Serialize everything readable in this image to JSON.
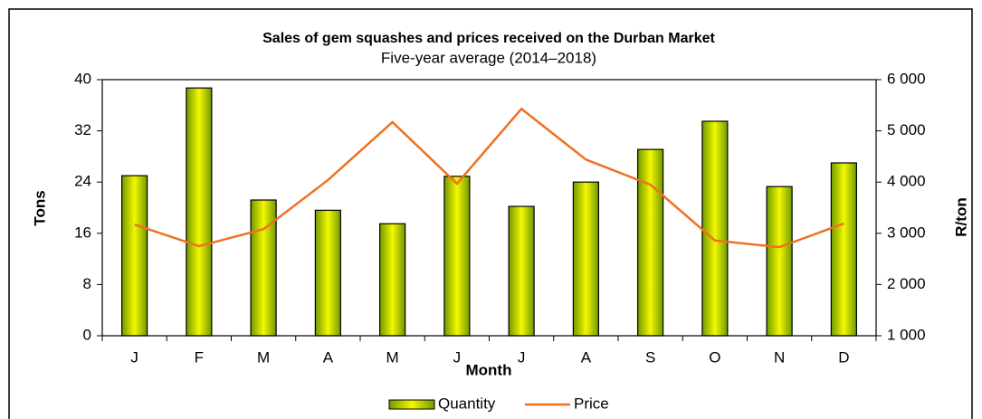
{
  "chart_data": {
    "type": "bar-line",
    "title": "Sales of gem squashes and prices received on the Durban Market",
    "subtitle": "Five-year average (2014–2018)",
    "x_label": "Month",
    "y_label": "Tons",
    "y2_label": "R/ton",
    "categories": [
      "J",
      "F",
      "M",
      "A",
      "M",
      "J",
      "J",
      "A",
      "S",
      "O",
      "N",
      "D"
    ],
    "series": [
      {
        "name": "Quantity",
        "type": "bar",
        "color": "#9acd00",
        "values": [
          25,
          38.7,
          21.2,
          19.6,
          17.5,
          24.9,
          20.2,
          24,
          29.1,
          33.5,
          23.3,
          27
        ]
      },
      {
        "name": "Price",
        "type": "line",
        "axis": "y2",
        "color": "#f07020",
        "values": [
          3170,
          2750,
          3080,
          4040,
          5170,
          3970,
          5430,
          4440,
          3950,
          2860,
          2730,
          3190
        ]
      }
    ],
    "ylim": [
      0,
      40
    ],
    "yticks": [
      0,
      8,
      16,
      24,
      32,
      40
    ],
    "y2lim": [
      1000,
      6000
    ],
    "y2ticks": [
      {
        "value": 1000,
        "label": "1 000"
      },
      {
        "value": 2000,
        "label": "2 000"
      },
      {
        "value": 3000,
        "label": "3 000"
      },
      {
        "value": 4000,
        "label": "4 000"
      },
      {
        "value": 5000,
        "label": "5 000"
      },
      {
        "value": 6000,
        "label": "6 000"
      }
    ],
    "legend": "bottom"
  }
}
